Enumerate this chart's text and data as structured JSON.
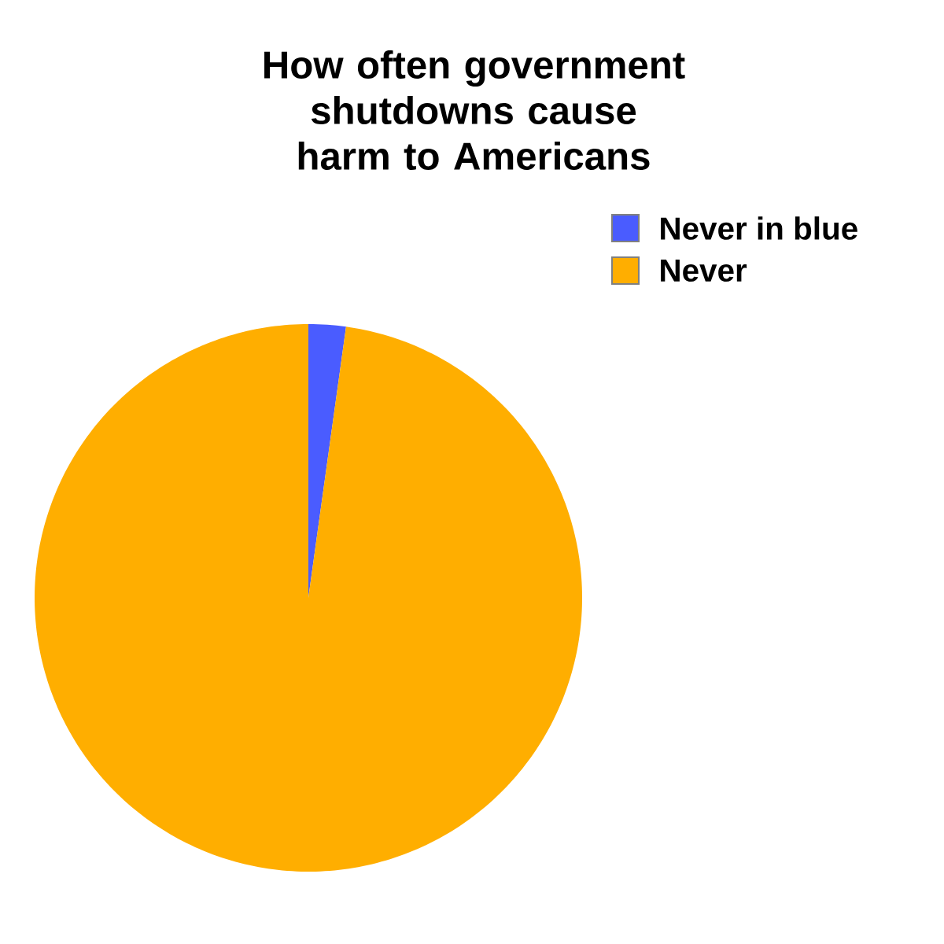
{
  "chart_data": {
    "type": "pie",
    "title": "How often government shutdowns cause harm to Americans",
    "categories": [
      "Never in blue",
      "Never"
    ],
    "values": [
      2.2,
      97.8
    ],
    "colors": [
      "#4a5cff",
      "#ffae00"
    ],
    "legend": "top right"
  }
}
